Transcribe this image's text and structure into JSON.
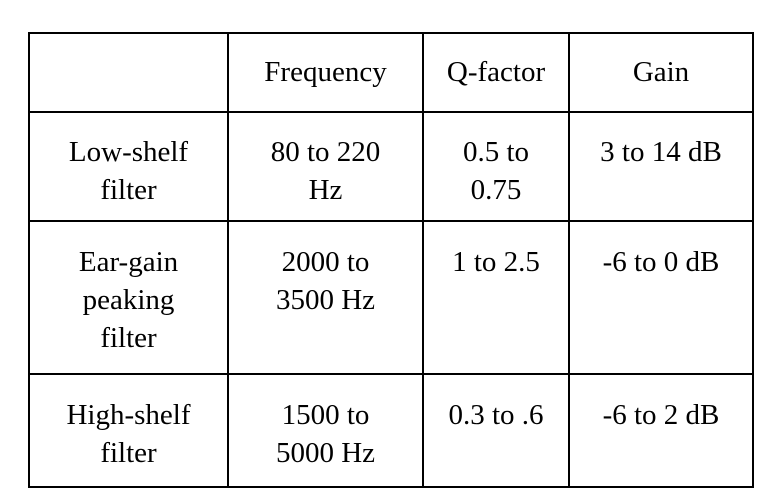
{
  "table": {
    "headers": [
      "",
      "Frequency",
      "Q-factor",
      "Gain"
    ],
    "rows": [
      {
        "filter": [
          "Low-shelf",
          "filter"
        ],
        "frequency": [
          "80 to 220",
          "Hz"
        ],
        "q_factor": [
          "0.5 to",
          "0.75"
        ],
        "gain": [
          "3 to 14 dB"
        ]
      },
      {
        "filter": [
          "Ear-gain",
          "peaking",
          "filter"
        ],
        "frequency": [
          "2000 to",
          "3500 Hz"
        ],
        "q_factor": [
          "1 to 2.5"
        ],
        "gain": [
          "-6 to 0 dB"
        ]
      },
      {
        "filter": [
          "High-shelf",
          "filter"
        ],
        "frequency": [
          "1500 to",
          "5000 Hz"
        ],
        "q_factor": [
          "0.3 to .6"
        ],
        "gain": [
          "-6 to 2 dB"
        ]
      }
    ]
  }
}
